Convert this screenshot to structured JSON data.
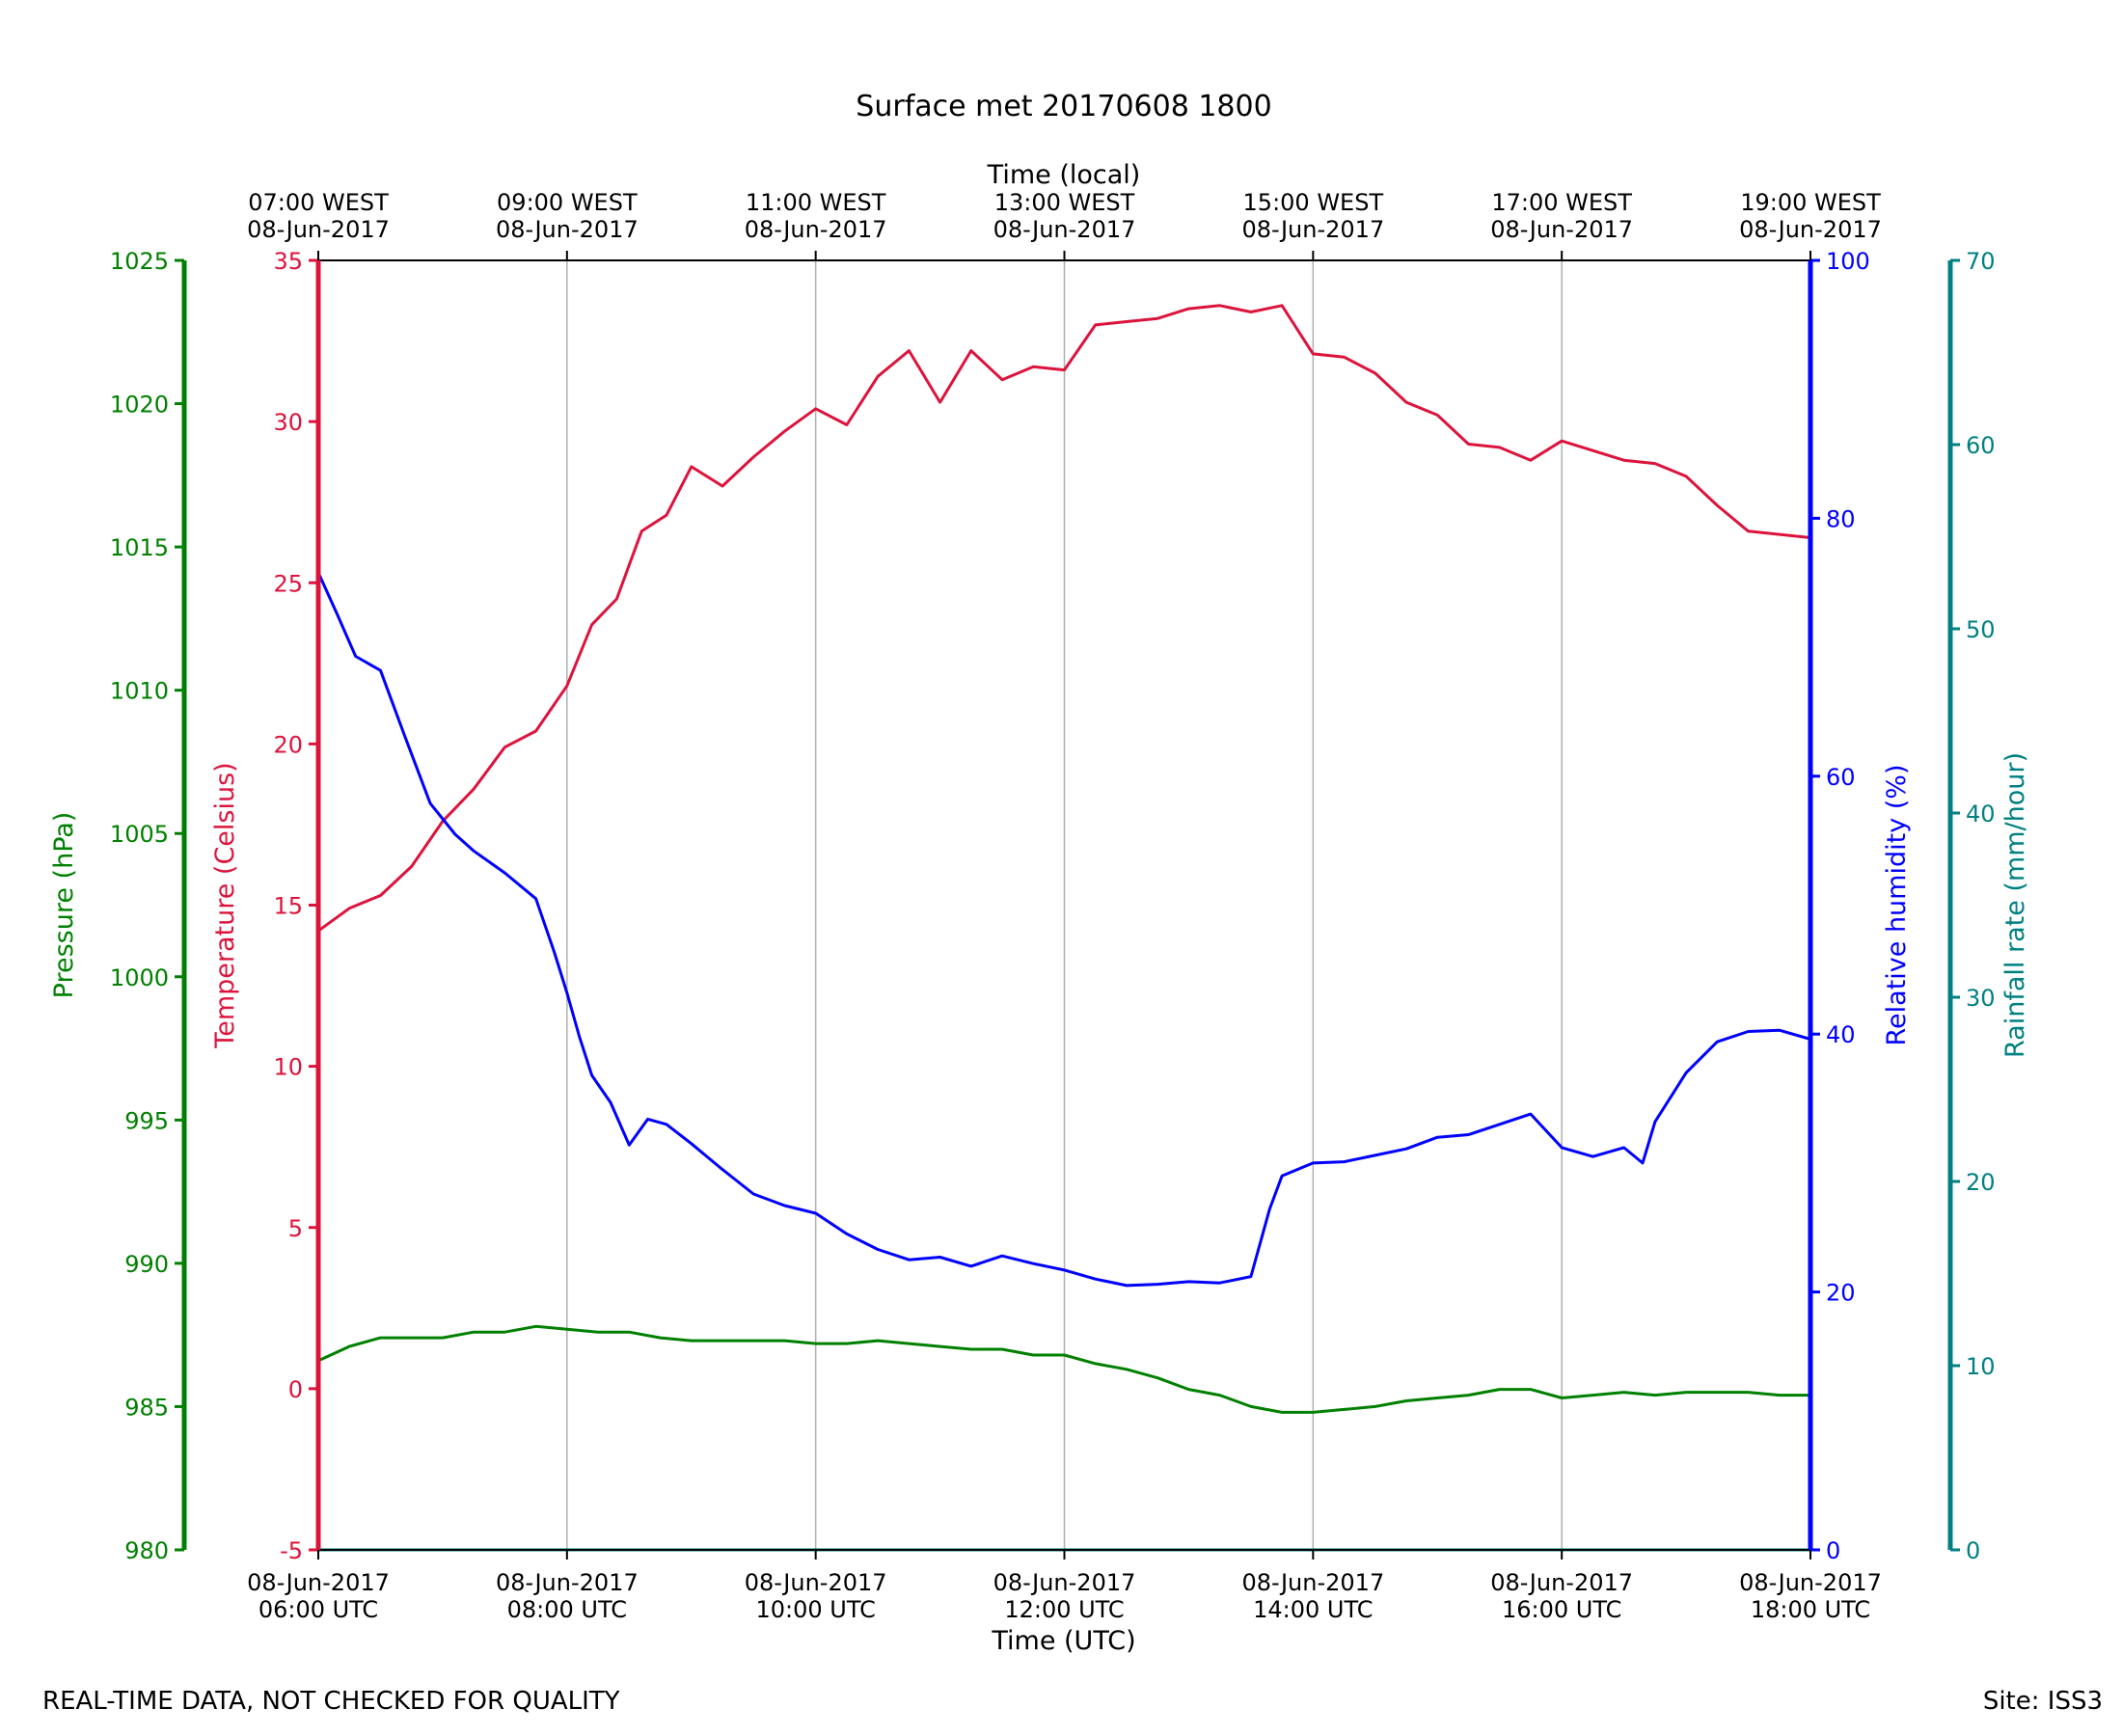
{
  "chart_data": {
    "type": "line",
    "title": "Surface met 20170608 1800",
    "xlabel": "Time (UTC)",
    "x2label": "Time (local)",
    "footer_left": "REAL-TIME DATA, NOT CHECKED FOR QUALITY",
    "footer_right": "Site: ISS3",
    "x_range_hours_utc": [
      6,
      18
    ],
    "x_ticks_utc": [
      {
        "date": "08-Jun-2017",
        "time": "06:00 UTC"
      },
      {
        "date": "08-Jun-2017",
        "time": "08:00 UTC"
      },
      {
        "date": "08-Jun-2017",
        "time": "10:00 UTC"
      },
      {
        "date": "08-Jun-2017",
        "time": "12:00 UTC"
      },
      {
        "date": "08-Jun-2017",
        "time": "14:00 UTC"
      },
      {
        "date": "08-Jun-2017",
        "time": "16:00 UTC"
      },
      {
        "date": "08-Jun-2017",
        "time": "18:00 UTC"
      }
    ],
    "x_ticks_local": [
      {
        "time": "07:00 WEST",
        "date": "08-Jun-2017"
      },
      {
        "time": "09:00 WEST",
        "date": "08-Jun-2017"
      },
      {
        "time": "11:00 WEST",
        "date": "08-Jun-2017"
      },
      {
        "time": "13:00 WEST",
        "date": "08-Jun-2017"
      },
      {
        "time": "15:00 WEST",
        "date": "08-Jun-2017"
      },
      {
        "time": "17:00 WEST",
        "date": "08-Jun-2017"
      },
      {
        "time": "19:00 WEST",
        "date": "08-Jun-2017"
      }
    ],
    "grid": "vertical",
    "axes": [
      {
        "id": "pressure",
        "label": "Pressure (hPa)",
        "side": "left-outer",
        "color": "#008000",
        "range": [
          980,
          1025
        ],
        "ticks": [
          980,
          985,
          990,
          995,
          1000,
          1005,
          1010,
          1015,
          1020,
          1025
        ]
      },
      {
        "id": "temperature",
        "label": "Temperature (Celsius)",
        "side": "left-inner",
        "color": "#DC143C",
        "range": [
          -5,
          35
        ],
        "ticks": [
          -5,
          0,
          5,
          10,
          15,
          20,
          25,
          30,
          35
        ]
      },
      {
        "id": "humidity",
        "label": "Relative humidity (%)",
        "side": "right-inner",
        "color": "#0000FF",
        "range": [
          0,
          100
        ],
        "ticks": [
          0,
          20,
          40,
          60,
          80,
          100
        ]
      },
      {
        "id": "rainfall",
        "label": "Rainfall rate (mm/hour)",
        "side": "right-outer",
        "color": "#008080",
        "range": [
          0,
          70
        ],
        "ticks": [
          0,
          10,
          20,
          30,
          40,
          50,
          60,
          70
        ]
      }
    ],
    "series": [
      {
        "axis": "temperature",
        "color": "#DC143C",
        "x_hours_utc": [
          6.0,
          6.25,
          6.5,
          6.75,
          7.0,
          7.25,
          7.5,
          7.75,
          8.0,
          8.2,
          8.4,
          8.6,
          8.8,
          9.0,
          9.25,
          9.5,
          9.75,
          10.0,
          10.25,
          10.5,
          10.75,
          11.0,
          11.25,
          11.5,
          11.75,
          12.0,
          12.25,
          12.5,
          12.75,
          13.0,
          13.25,
          13.5,
          13.75,
          14.0,
          14.25,
          14.5,
          14.75,
          15.0,
          15.25,
          15.5,
          15.75,
          16.0,
          16.25,
          16.5,
          16.75,
          17.0,
          17.25,
          17.5,
          17.75,
          18.0
        ],
        "values": [
          14.2,
          14.9,
          15.3,
          16.2,
          17.6,
          18.6,
          19.9,
          20.4,
          21.8,
          23.7,
          24.5,
          26.6,
          27.1,
          28.6,
          28.0,
          28.9,
          29.7,
          30.4,
          29.9,
          31.4,
          32.2,
          30.6,
          32.2,
          31.3,
          31.7,
          31.6,
          33.0,
          33.1,
          33.2,
          33.5,
          33.6,
          33.4,
          33.6,
          32.1,
          32.0,
          31.5,
          30.6,
          30.2,
          29.3,
          29.2,
          28.8,
          29.4,
          29.1,
          28.8,
          28.7,
          28.3,
          27.4,
          26.6,
          26.5,
          26.4
        ]
      },
      {
        "axis": "humidity",
        "color": "#0000FF",
        "x_hours_utc": [
          6.0,
          6.15,
          6.3,
          6.5,
          6.7,
          6.9,
          7.1,
          7.25,
          7.5,
          7.75,
          7.9,
          8.0,
          8.1,
          8.2,
          8.35,
          8.5,
          8.65,
          8.8,
          9.0,
          9.25,
          9.5,
          9.75,
          10.0,
          10.25,
          10.5,
          10.75,
          11.0,
          11.25,
          11.5,
          11.75,
          12.0,
          12.25,
          12.5,
          12.75,
          13.0,
          13.25,
          13.5,
          13.65,
          13.75,
          14.0,
          14.25,
          14.5,
          14.75,
          15.0,
          15.25,
          15.5,
          15.75,
          16.0,
          16.25,
          16.5,
          16.65,
          16.75,
          17.0,
          17.25,
          17.5,
          17.75,
          18.0
        ],
        "values": [
          75.8,
          72.6,
          69.3,
          68.2,
          63.0,
          57.9,
          55.5,
          54.2,
          52.5,
          50.5,
          46.3,
          43.2,
          39.8,
          36.8,
          34.7,
          31.4,
          33.4,
          33.0,
          31.5,
          29.5,
          27.6,
          26.7,
          26.1,
          24.5,
          23.3,
          22.5,
          22.7,
          22.0,
          22.8,
          22.2,
          21.7,
          21.0,
          20.5,
          20.6,
          20.8,
          20.7,
          21.2,
          26.4,
          29.0,
          30.0,
          30.1,
          30.6,
          31.1,
          32.0,
          32.2,
          33.0,
          33.8,
          31.2,
          30.5,
          31.2,
          30.0,
          33.2,
          37.0,
          39.4,
          40.2,
          40.3,
          39.6
        ]
      },
      {
        "axis": "pressure",
        "color": "#008000",
        "x_hours_utc": [
          6.0,
          6.25,
          6.5,
          6.75,
          7.0,
          7.25,
          7.5,
          7.75,
          8.0,
          8.25,
          8.5,
          8.75,
          9.0,
          9.25,
          9.5,
          9.75,
          10.0,
          10.25,
          10.5,
          10.75,
          11.0,
          11.25,
          11.5,
          11.75,
          12.0,
          12.25,
          12.5,
          12.75,
          13.0,
          13.25,
          13.5,
          13.75,
          14.0,
          14.25,
          14.5,
          14.75,
          15.0,
          15.25,
          15.5,
          15.75,
          16.0,
          16.25,
          16.5,
          16.75,
          17.0,
          17.25,
          17.5,
          17.75,
          18.0
        ],
        "values": [
          986.6,
          987.1,
          987.4,
          987.4,
          987.4,
          987.6,
          987.6,
          987.8,
          987.7,
          987.6,
          987.6,
          987.4,
          987.3,
          987.3,
          987.3,
          987.3,
          987.2,
          987.2,
          987.3,
          987.2,
          987.1,
          987.0,
          987.0,
          986.8,
          986.8,
          986.5,
          986.3,
          986.0,
          985.6,
          985.4,
          985.0,
          984.8,
          984.8,
          984.9,
          985.0,
          985.2,
          985.3,
          985.4,
          985.6,
          985.6,
          985.3,
          985.4,
          985.5,
          985.4,
          985.5,
          985.5,
          985.5,
          985.4,
          985.4
        ]
      },
      {
        "axis": "rainfall",
        "color": "#008080",
        "x_hours_utc": [
          6.0,
          18.0
        ],
        "values": [
          0,
          0
        ]
      }
    ]
  }
}
